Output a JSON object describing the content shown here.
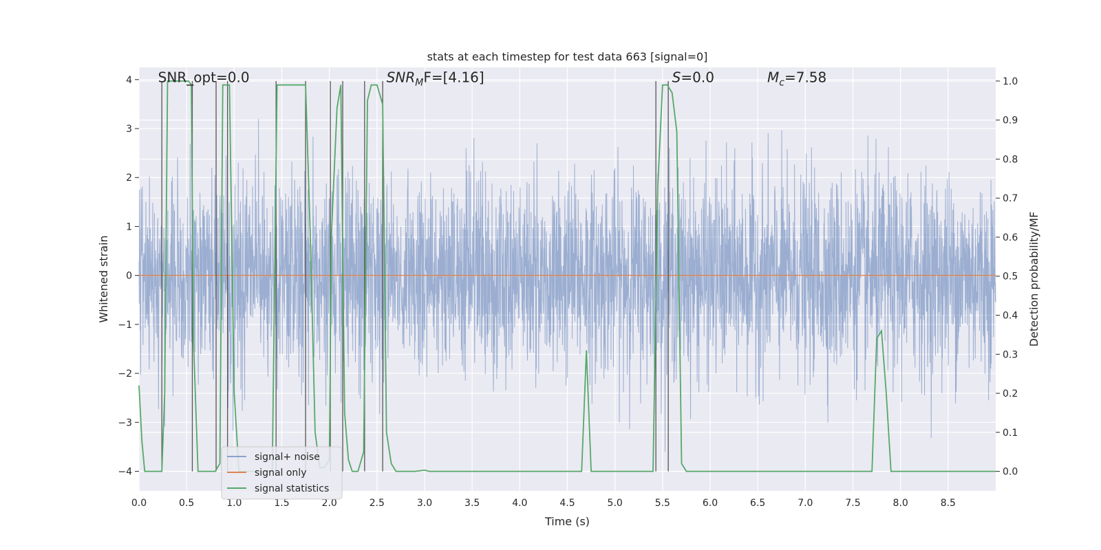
{
  "chart_data": {
    "type": "line",
    "title": "stats at each timestep for test data 663 [signal=0]",
    "xlabel": "Time (s)",
    "ylabel_left": "Whitened strain",
    "ylabel_right": "Detection probability/MF",
    "xlim": [
      0.0,
      9.0
    ],
    "ylim_left": [
      -4.4,
      4.25
    ],
    "ylim_right": [
      -0.05,
      1.035
    ],
    "x_ticks": [
      "0.0",
      "0.5",
      "1.0",
      "1.5",
      "2.0",
      "2.5",
      "3.0",
      "3.5",
      "4.0",
      "4.5",
      "5.0",
      "5.5",
      "6.0",
      "6.5",
      "7.0",
      "7.5",
      "8.0",
      "8.5"
    ],
    "y_ticks_left": [
      "−4",
      "−3",
      "−2",
      "−1",
      "0",
      "1",
      "2",
      "3",
      "4"
    ],
    "y_ticks_right": [
      "0.0",
      "0.1",
      "0.2",
      "0.3",
      "0.4",
      "0.5",
      "0.6",
      "0.7",
      "0.8",
      "0.9",
      "1.0"
    ],
    "grid": true,
    "legend_position": "lower-left",
    "annotations": [
      {
        "text": "SNR_opt=0.0",
        "x": 0.2,
        "y": 3.95
      },
      {
        "text": "SNR",
        "sub": "M",
        "after": "F=[4.16]",
        "italic": true,
        "x": 2.6,
        "y": 3.95
      },
      {
        "text": "S",
        "after": "=0.0",
        "italic": true,
        "x": 5.6,
        "y": 3.95
      },
      {
        "text": "M",
        "sub": "c",
        "after": "=7.58",
        "italic": true,
        "x": 6.6,
        "y": 3.95
      }
    ],
    "series": [
      {
        "name": "signal+ noise",
        "color": "#4c72b0",
        "kind": "noise",
        "description": "whitened noise trace, approx. Gaussian with std ~1, spanning -3.6 to 3.8 over 0-9 s"
      },
      {
        "name": "signal only",
        "color": "#dd8452",
        "kind": "flat",
        "x": [
          0.0,
          9.0
        ],
        "y": [
          0.0,
          0.0
        ]
      },
      {
        "name": "signal statistics",
        "color": "#55a868",
        "kind": "line",
        "axis": "right",
        "x": [
          0.0,
          0.03,
          0.06,
          0.24,
          0.27,
          0.3,
          0.52,
          0.55,
          0.57,
          0.62,
          0.8,
          0.85,
          0.88,
          0.95,
          1.0,
          1.05,
          1.4,
          1.45,
          1.5,
          1.75,
          1.8,
          1.85,
          1.9,
          1.95,
          2.0,
          2.02,
          2.08,
          2.12,
          2.16,
          2.2,
          2.24,
          2.3,
          2.36,
          2.4,
          2.44,
          2.5,
          2.56,
          2.6,
          2.65,
          2.7,
          2.9,
          3.0,
          3.05,
          3.1,
          4.6,
          4.65,
          4.7,
          4.75,
          5.0,
          5.4,
          5.45,
          5.5,
          5.55,
          5.6,
          5.65,
          5.7,
          5.75,
          7.7,
          7.75,
          7.8,
          7.85,
          7.9,
          8.4,
          9.0
        ],
        "y": [
          0.22,
          0.08,
          0.0,
          0.0,
          0.2,
          1.0,
          1.0,
          0.99,
          0.35,
          0.0,
          0.0,
          0.02,
          0.99,
          0.99,
          0.2,
          0.0,
          0.0,
          0.99,
          0.99,
          0.99,
          0.6,
          0.1,
          0.01,
          0.01,
          0.03,
          0.6,
          0.93,
          0.99,
          0.15,
          0.03,
          0.0,
          0.0,
          0.05,
          0.95,
          0.99,
          0.99,
          0.94,
          0.1,
          0.02,
          0.0,
          0.0,
          0.003,
          0.0,
          0.0,
          0.0,
          0.0,
          0.31,
          0.0,
          0.0,
          0.0,
          0.73,
          0.99,
          0.99,
          0.97,
          0.87,
          0.02,
          0.0,
          0.0,
          0.34,
          0.36,
          0.2,
          0.0,
          0.0,
          0.0
        ]
      },
      {
        "name": "",
        "color": "#555555",
        "kind": "vlines",
        "x": [
          0.24,
          0.56,
          0.81,
          0.93,
          1.44,
          1.75,
          2.01,
          2.14,
          2.37,
          2.56,
          5.43,
          5.56
        ]
      }
    ]
  }
}
